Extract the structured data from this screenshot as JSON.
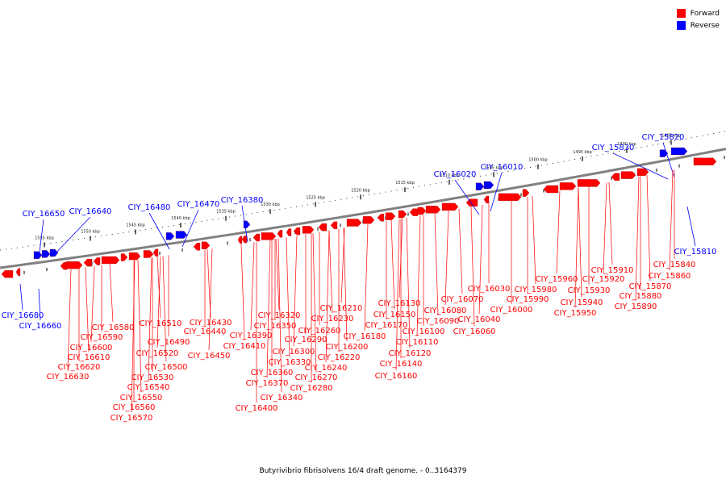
{
  "legend": {
    "forward_label": "Forward",
    "reverse_label": "Reverse",
    "forward_color": "#ff0000",
    "reverse_color": "#0000ff"
  },
  "caption": "Butyrivibrio fibrisolvens 16/4 draft genome. - 0..3164379",
  "scale_ticks": [
    "1555 kbp",
    "1550 kbp",
    "1545 kbp",
    "1540 kbp",
    "1535 kbp",
    "1530 kbp",
    "1525 kbp",
    "1520 kbp",
    "1515 kbp",
    "1510 kbp",
    "1505 kbp",
    "1500 kbp",
    "1495 kbp",
    "1490 kbp",
    "1485 kbp"
  ],
  "reverse_labels": [
    "CIY_16650",
    "CIY_16640",
    "CIY_16480",
    "CIY_16470",
    "CIY_16380",
    "CIY_16020",
    "CIY_16010",
    "CIY_15830",
    "CIY_15820",
    "CIY_15810",
    "CIY_16680",
    "CIY_16660"
  ],
  "forward_labels": [
    "CIY_16580",
    "CIY_16590",
    "CIY_16600",
    "CIY_16610",
    "CIY_16620",
    "CIY_16630",
    "CIY_16510",
    "CIY_16490",
    "CIY_16520",
    "CIY_16500",
    "CIY_16530",
    "CIY_16540",
    "CIY_16550",
    "CIY_16560",
    "CIY_16570",
    "CIY_16430",
    "CIY_16440",
    "CIY_16450",
    "CIY_16320",
    "CIY_16350",
    "CIY_16390",
    "CIY_16410",
    "CIY_16290",
    "CIY_16300",
    "CIY_16330",
    "CIY_16360",
    "CIY_16370",
    "CIY_16340",
    "CIY_16400",
    "CIY_16210",
    "CIY_16230",
    "CIY_16260",
    "CIY_16180",
    "CIY_16200",
    "CIY_16220",
    "CIY_16240",
    "CIY_16270",
    "CIY_16280",
    "CIY_16130",
    "CIY_16150",
    "CIY_16170",
    "CIY_16080",
    "CIY_16090",
    "CIY_16100",
    "CIY_16110",
    "CIY_16120",
    "CIY_16140",
    "CIY_16160",
    "CIY_16070",
    "CIY_16030",
    "CIY_16040",
    "CIY_16060",
    "CIY_16000",
    "CIY_15960",
    "CIY_15980",
    "CIY_15990",
    "CIY_15950",
    "CIY_15940",
    "CIY_15930",
    "CIY_15920",
    "CIY_15910",
    "CIY_15840",
    "CIY_15860",
    "CIY_15870",
    "CIY_15880",
    "CIY_15890"
  ]
}
